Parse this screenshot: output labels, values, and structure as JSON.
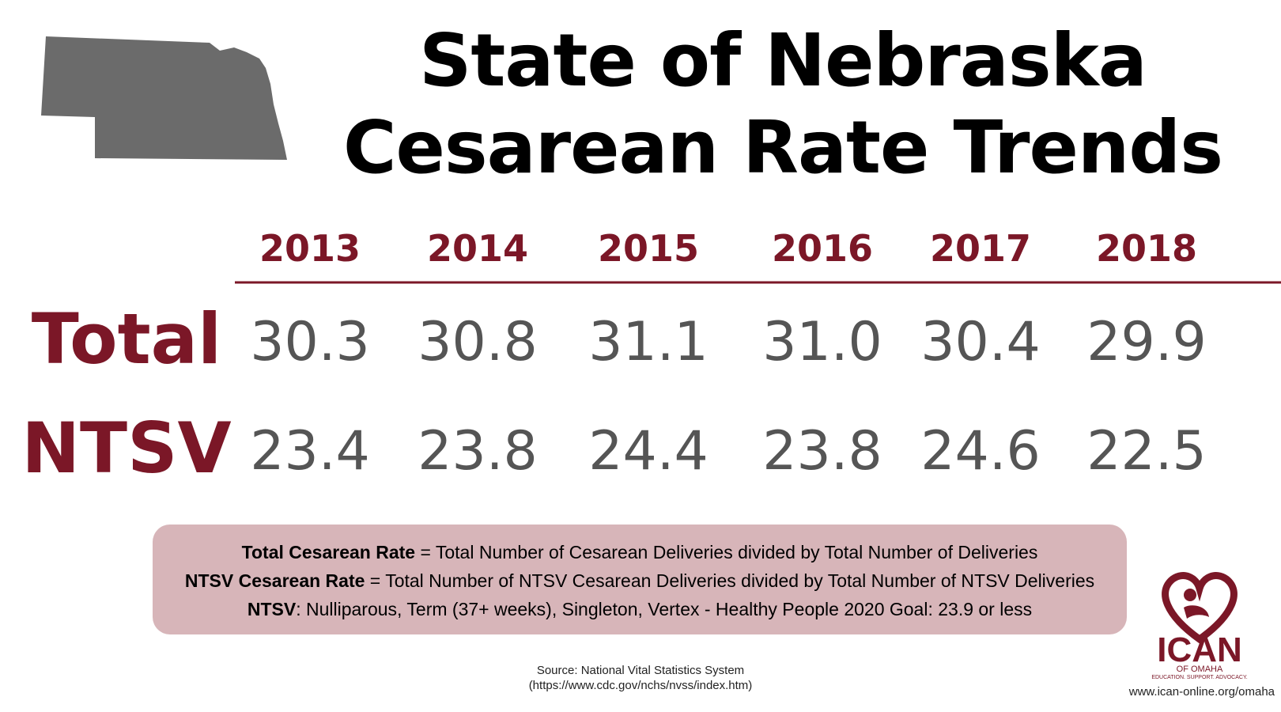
{
  "title": {
    "line1": "State of Nebraska",
    "line2": "Cesarean Rate Trends"
  },
  "colors": {
    "accent": "#7b1727",
    "value": "#555555",
    "map": "#6b6b6b",
    "defs_bg": "#d7b5b9"
  },
  "chart_data": {
    "type": "table",
    "categories": [
      "2013",
      "2014",
      "2015",
      "2016",
      "2017",
      "2018"
    ],
    "series": [
      {
        "name": "Total",
        "values": [
          "30.3",
          "30.8",
          "31.1",
          "31.0",
          "30.4",
          "29.9"
        ]
      },
      {
        "name": "NTSV",
        "values": [
          "23.4",
          "23.8",
          "24.4",
          "23.8",
          "24.6",
          "22.5"
        ]
      }
    ]
  },
  "definitions": [
    {
      "term": "Total Cesarean Rate",
      "text": " = Total Number of Cesarean Deliveries divided by Total Number of Deliveries"
    },
    {
      "term": "NTSV Cesarean Rate",
      "text": " = Total Number of NTSV Cesarean Deliveries divided by Total Number of NTSV Deliveries"
    },
    {
      "term": "NTSV",
      "text": ":  Nulliparous, Term (37+ weeks), Singleton, Vertex - Healthy People 2020 Goal:  23.9 or less"
    }
  ],
  "source": {
    "line1": "Source:  National Vital Statistics System",
    "line2": "(https://www.cdc.gov/nchs/nvss/index.htm)"
  },
  "logo": {
    "name": "ICAN",
    "sub": "OF OMAHA",
    "tagline": "EDUCATION. SUPPORT. ADVOCACY."
  },
  "url": "www.ican-online.org/omaha"
}
